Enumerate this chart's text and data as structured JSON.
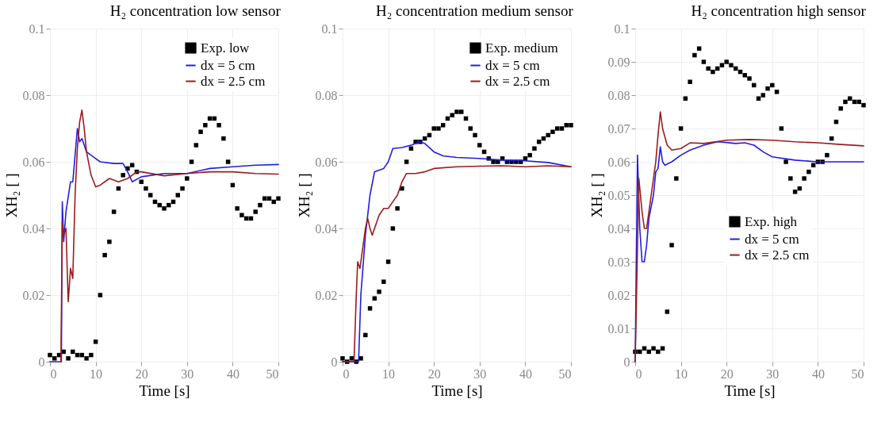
{
  "chart_data": [
    {
      "type": "line",
      "title": "H₂ concentration low sensor",
      "xlabel": "Time [s]",
      "ylabel": "XH₂ [ ]",
      "xlim": [
        0,
        50
      ],
      "xticks": [
        0,
        10,
        20,
        30,
        40,
        50
      ],
      "ylim": [
        0,
        0.1
      ],
      "yticks": [
        0,
        0.02,
        0.04,
        0.06,
        0.08,
        0.1
      ],
      "grid": true,
      "legend": "top right",
      "series": [
        {
          "name": "Exp. low",
          "type": "scatter",
          "marker": "square",
          "color": "#000000",
          "x": [
            0,
            1,
            2,
            3,
            4,
            5,
            6,
            7,
            8,
            9,
            10,
            11,
            12,
            13,
            14,
            15,
            16,
            17,
            18,
            19,
            20,
            21,
            22,
            23,
            24,
            25,
            26,
            27,
            28,
            29,
            30,
            31,
            32,
            33,
            34,
            35,
            36,
            37,
            38,
            39,
            40,
            41,
            42,
            43,
            44,
            45,
            46,
            47,
            48,
            49,
            50
          ],
          "values": [
            0.002,
            0.001,
            0.002,
            0.003,
            0.001,
            0.003,
            0.002,
            0.002,
            0.001,
            0.002,
            0.006,
            0.02,
            0.032,
            0.036,
            0.045,
            0.052,
            0.056,
            0.058,
            0.059,
            0.057,
            0.054,
            0.052,
            0.05,
            0.048,
            0.047,
            0.046,
            0.047,
            0.048,
            0.05,
            0.052,
            0.055,
            0.06,
            0.065,
            0.069,
            0.071,
            0.073,
            0.073,
            0.071,
            0.067,
            0.06,
            0.053,
            0.046,
            0.044,
            0.043,
            0.043,
            0.045,
            0.047,
            0.049,
            0.049,
            0.048,
            0.049
          ]
        },
        {
          "name": "dx = 5 cm",
          "type": "line",
          "color": "#1f1fe0",
          "x": [
            0,
            2.5,
            2.7,
            3,
            3.5,
            4.5,
            5,
            5.5,
            6,
            6.5,
            7,
            8,
            10,
            11,
            14,
            16,
            17,
            18,
            20,
            25,
            30,
            35,
            40,
            45,
            50
          ],
          "values": [
            0,
            0,
            0.048,
            0.036,
            0.045,
            0.054,
            0.054,
            0.062,
            0.07,
            0.066,
            0.067,
            0.063,
            0.061,
            0.06,
            0.0595,
            0.0595,
            0.057,
            0.054,
            0.0555,
            0.0565,
            0.0565,
            0.058,
            0.0585,
            0.059,
            0.0592
          ]
        },
        {
          "name": "dx = 2.5 cm",
          "type": "line",
          "color": "#9b1c1c",
          "x": [
            2.4,
            2.7,
            3,
            3.5,
            4,
            4.5,
            5,
            5.5,
            6,
            6.5,
            7,
            7.5,
            8,
            9,
            10,
            11,
            13,
            15,
            17,
            19,
            20,
            25,
            30,
            35,
            40,
            45,
            50
          ],
          "values": [
            0,
            0.042,
            0.038,
            0.04,
            0.018,
            0.028,
            0.025,
            0.05,
            0.064,
            0.072,
            0.0755,
            0.07,
            0.063,
            0.056,
            0.0525,
            0.053,
            0.055,
            0.054,
            0.055,
            0.057,
            0.057,
            0.0558,
            0.0565,
            0.057,
            0.057,
            0.0565,
            0.0563
          ]
        }
      ]
    },
    {
      "type": "line",
      "title": "H₂ concentration medium sensor",
      "xlabel": "Time [s]",
      "ylabel": "XH₂ [ ]",
      "xlim": [
        0,
        50
      ],
      "xticks": [
        0,
        10,
        20,
        30,
        40,
        50
      ],
      "ylim": [
        0,
        0.1
      ],
      "yticks": [
        0,
        0.02,
        0.04,
        0.06,
        0.08,
        0.1
      ],
      "grid": true,
      "legend": "top right",
      "series": [
        {
          "name": "Exp. medium",
          "type": "scatter",
          "marker": "square",
          "color": "#000000",
          "x": [
            0,
            1,
            2,
            3,
            4,
            5,
            6,
            7,
            8,
            9,
            10,
            11,
            12,
            13,
            14,
            15,
            16,
            17,
            18,
            19,
            20,
            21,
            22,
            23,
            24,
            25,
            26,
            27,
            28,
            29,
            30,
            31,
            32,
            33,
            34,
            35,
            36,
            37,
            38,
            39,
            40,
            41,
            42,
            43,
            44,
            45,
            46,
            47,
            48,
            49,
            50
          ],
          "values": [
            0.001,
            0.0,
            0.001,
            0.0,
            0.001,
            0.008,
            0.016,
            0.019,
            0.021,
            0.024,
            0.03,
            0.04,
            0.046,
            0.052,
            0.06,
            0.064,
            0.066,
            0.066,
            0.067,
            0.068,
            0.07,
            0.07,
            0.071,
            0.073,
            0.074,
            0.075,
            0.075,
            0.073,
            0.07,
            0.068,
            0.065,
            0.063,
            0.061,
            0.06,
            0.06,
            0.061,
            0.06,
            0.06,
            0.06,
            0.06,
            0.061,
            0.062,
            0.064,
            0.066,
            0.067,
            0.068,
            0.069,
            0.07,
            0.07,
            0.071,
            0.071
          ]
        },
        {
          "name": "dx = 5 cm",
          "type": "line",
          "color": "#1f1fe0",
          "x": [
            0,
            3.5,
            4,
            5,
            6,
            7,
            8,
            9,
            10,
            11,
            13,
            15,
            17,
            18,
            20,
            22,
            25,
            30,
            35,
            40,
            45,
            50
          ],
          "values": [
            0,
            0,
            0.02,
            0.038,
            0.05,
            0.057,
            0.0575,
            0.058,
            0.06,
            0.064,
            0.0643,
            0.065,
            0.066,
            0.0655,
            0.063,
            0.0618,
            0.0613,
            0.061,
            0.0605,
            0.0603,
            0.0598,
            0.0585
          ]
        },
        {
          "name": "dx = 2.5 cm",
          "type": "line",
          "color": "#9b1c1c",
          "x": [
            0,
            2.5,
            3,
            3.3,
            3.8,
            4.5,
            5,
            5.5,
            6,
            6.5,
            7,
            8,
            9,
            10,
            11,
            12,
            13,
            14,
            16,
            18,
            20,
            25,
            30,
            35,
            40,
            45,
            50
          ],
          "values": [
            0,
            0,
            0.02,
            0.03,
            0.028,
            0.035,
            0.04,
            0.043,
            0.04,
            0.038,
            0.04,
            0.044,
            0.046,
            0.046,
            0.048,
            0.05,
            0.054,
            0.0565,
            0.0565,
            0.057,
            0.058,
            0.0585,
            0.0587,
            0.0588,
            0.0585,
            0.0588,
            0.0585
          ]
        }
      ]
    },
    {
      "type": "line",
      "title": "H₂ concentration high sensor",
      "xlabel": "Time [s]",
      "ylabel": "XH₂ [ ]",
      "xlim": [
        0,
        50
      ],
      "xticks": [
        0,
        10,
        20,
        30,
        40,
        50
      ],
      "ylim": [
        0,
        0.1
      ],
      "yticks": [
        0,
        0.01,
        0.02,
        0.03,
        0.04,
        0.05,
        0.06,
        0.07,
        0.08,
        0.09,
        0.1
      ],
      "grid": true,
      "legend": "right",
      "series": [
        {
          "name": "Exp. high",
          "type": "scatter",
          "marker": "square",
          "color": "#000000",
          "x": [
            0,
            1,
            2,
            3,
            4,
            5,
            6,
            7,
            8,
            9,
            10,
            11,
            12,
            13,
            14,
            15,
            16,
            17,
            18,
            19,
            20,
            21,
            22,
            23,
            24,
            25,
            26,
            27,
            28,
            29,
            30,
            31,
            32,
            33,
            34,
            35,
            36,
            37,
            38,
            39,
            40,
            41,
            42,
            43,
            44,
            45,
            46,
            47,
            48,
            49,
            50
          ],
          "values": [
            0.003,
            0.003,
            0.004,
            0.003,
            0.004,
            0.003,
            0.004,
            0.015,
            0.035,
            0.055,
            0.07,
            0.079,
            0.084,
            0.092,
            0.094,
            0.09,
            0.088,
            0.087,
            0.088,
            0.089,
            0.09,
            0.089,
            0.088,
            0.087,
            0.086,
            0.085,
            0.083,
            0.079,
            0.08,
            0.082,
            0.083,
            0.081,
            0.07,
            0.06,
            0.055,
            0.051,
            0.052,
            0.055,
            0.057,
            0.059,
            0.06,
            0.06,
            0.062,
            0.067,
            0.072,
            0.076,
            0.078,
            0.079,
            0.078,
            0.078,
            0.077
          ]
        },
        {
          "name": "dx = 5 cm",
          "type": "line",
          "color": "#1f1fe0",
          "x": [
            0,
            0.5,
            1,
            1.5,
            2,
            2.5,
            3,
            4,
            4.5,
            5,
            5.5,
            6,
            6.5,
            8,
            10,
            12,
            15,
            18,
            20,
            22,
            24,
            26,
            28,
            30,
            35,
            40,
            45,
            50
          ],
          "values": [
            0,
            0.062,
            0.04,
            0.03,
            0.03,
            0.035,
            0.043,
            0.05,
            0.057,
            0.058,
            0.0645,
            0.06,
            0.059,
            0.06,
            0.062,
            0.0635,
            0.065,
            0.066,
            0.0658,
            0.0655,
            0.0657,
            0.065,
            0.063,
            0.0615,
            0.0605,
            0.06,
            0.06,
            0.06
          ]
        },
        {
          "name": "dx = 2.5 cm",
          "type": "line",
          "color": "#9b1c1c",
          "x": [
            0,
            0.8,
            1.5,
            2,
            2.5,
            3,
            4,
            4.5,
            5,
            5.5,
            6,
            7,
            8,
            10,
            12,
            15,
            20,
            25,
            30,
            35,
            40,
            45,
            50
          ],
          "values": [
            0,
            0.055,
            0.045,
            0.04,
            0.04,
            0.045,
            0.055,
            0.06,
            0.068,
            0.075,
            0.07,
            0.065,
            0.0635,
            0.064,
            0.0657,
            0.0655,
            0.0665,
            0.0667,
            0.0665,
            0.066,
            0.0657,
            0.0652,
            0.0648
          ]
        }
      ]
    }
  ]
}
